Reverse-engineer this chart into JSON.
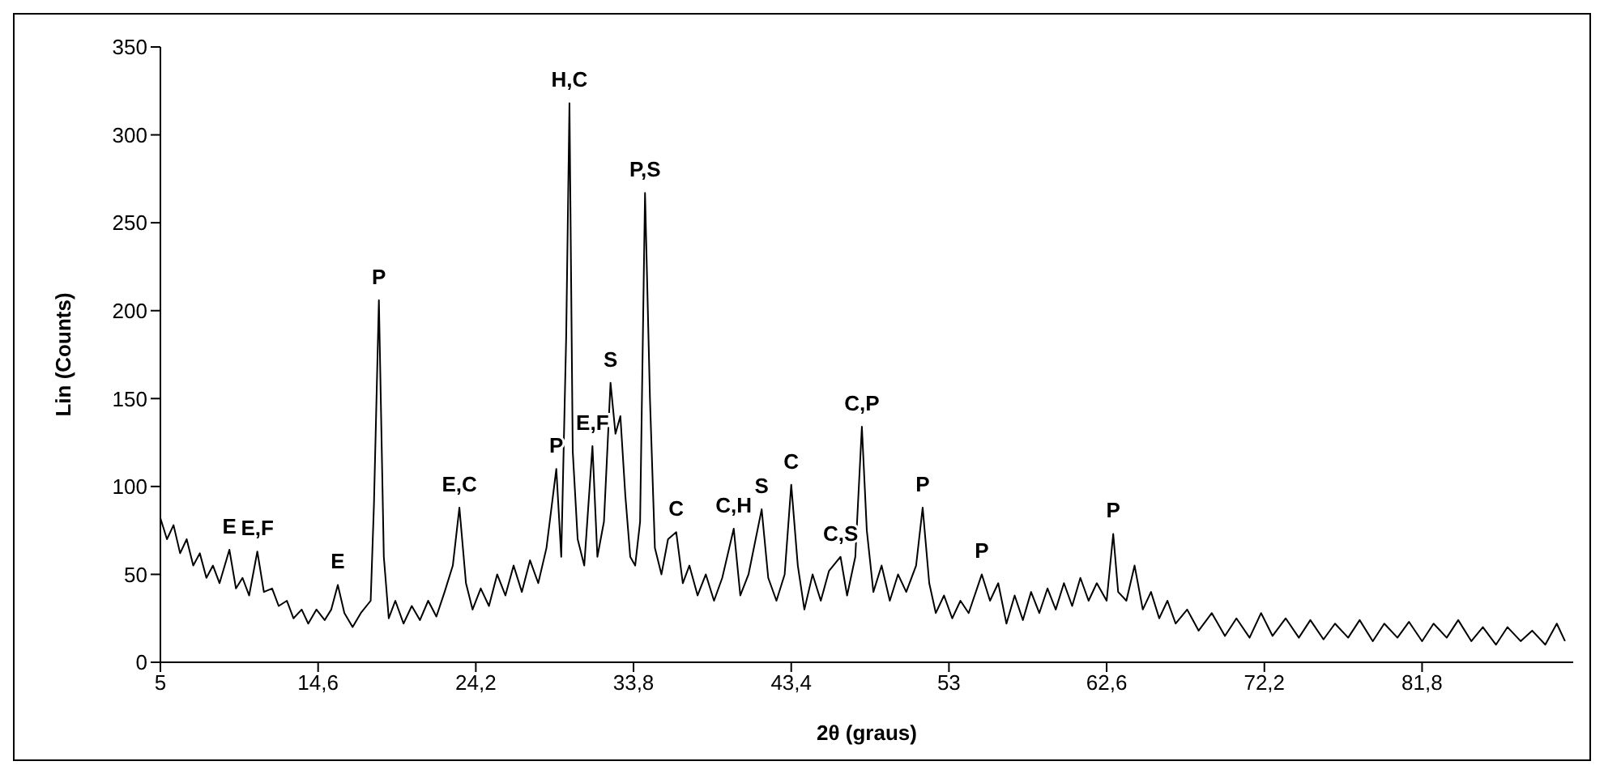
{
  "chart_data": {
    "type": "line",
    "xlabel": "2θ (graus)",
    "ylabel": "Lin (Counts)",
    "xlim": [
      5,
      91
    ],
    "xticks": [
      5,
      {
        "value": 14.6,
        "label": "14,6"
      },
      {
        "value": 24.2,
        "label": "24,2"
      },
      {
        "value": 33.8,
        "label": "33,8"
      },
      {
        "value": 43.4,
        "label": "43,4"
      },
      53,
      {
        "value": 62.6,
        "label": "62,6"
      },
      {
        "value": 72.2,
        "label": "72,2"
      },
      {
        "value": 81.8,
        "label": "81,8"
      }
    ],
    "ylim": [
      0,
      350
    ],
    "yticks": [
      0,
      50,
      100,
      150,
      200,
      250,
      300,
      350
    ],
    "grid": false,
    "marker": "none",
    "line_style": "solid",
    "series": [
      {
        "color": "#000000",
        "x": [
          5,
          5.4,
          5.8,
          6.2,
          6.6,
          7.0,
          7.4,
          7.8,
          8.2,
          8.6,
          9.2,
          9.6,
          10.0,
          10.4,
          10.9,
          11.3,
          11.8,
          12.2,
          12.7,
          13.1,
          13.6,
          14.0,
          14.5,
          15.0,
          15.4,
          15.8,
          16.2,
          16.7,
          17.2,
          17.8,
          18.0,
          18.3,
          18.6,
          18.9,
          19.3,
          19.8,
          20.3,
          20.8,
          21.3,
          21.8,
          22.3,
          22.8,
          23.2,
          23.6,
          24.0,
          24.5,
          25.0,
          25.5,
          26.0,
          26.5,
          27.0,
          27.5,
          28.0,
          28.5,
          29.1,
          29.4,
          29.7,
          29.9,
          30.1,
          30.4,
          30.8,
          31.3,
          31.6,
          32.0,
          32.4,
          32.7,
          33.0,
          33.3,
          33.6,
          33.9,
          34.2,
          34.5,
          34.8,
          35.1,
          35.5,
          35.9,
          36.4,
          36.8,
          37.2,
          37.7,
          38.2,
          38.7,
          39.2,
          39.9,
          40.3,
          40.8,
          41.6,
          42.0,
          42.5,
          43.0,
          43.4,
          43.8,
          44.2,
          44.7,
          45.2,
          45.7,
          46.4,
          46.8,
          47.3,
          47.7,
          48.0,
          48.4,
          48.9,
          49.4,
          49.9,
          50.4,
          51.0,
          51.4,
          51.8,
          52.2,
          52.7,
          53.2,
          53.7,
          54.2,
          55.0,
          55.5,
          56.0,
          56.5,
          57.0,
          57.5,
          58.0,
          58.5,
          59.0,
          59.5,
          60.0,
          60.5,
          61.0,
          61.5,
          62.0,
          62.6,
          63.0,
          63.3,
          63.8,
          64.3,
          64.8,
          65.3,
          65.8,
          66.3,
          66.8,
          67.5,
          68.2,
          69.0,
          69.8,
          70.5,
          71.3,
          72.0,
          72.7,
          73.5,
          74.3,
          75.0,
          75.8,
          76.5,
          77.3,
          78.0,
          78.8,
          79.5,
          80.3,
          81.0,
          81.8,
          82.5,
          83.3,
          84.0,
          84.8,
          85.5,
          86.3,
          87.0,
          87.8,
          88.5,
          89.3,
          90.0,
          90.5
        ],
        "values": [
          82,
          70,
          78,
          62,
          70,
          55,
          62,
          48,
          55,
          45,
          64,
          42,
          48,
          38,
          63,
          40,
          42,
          32,
          35,
          25,
          30,
          22,
          30,
          24,
          30,
          44,
          28,
          20,
          28,
          35,
          90,
          206,
          60,
          25,
          35,
          22,
          32,
          24,
          35,
          26,
          40,
          55,
          88,
          45,
          30,
          42,
          32,
          50,
          38,
          55,
          40,
          58,
          45,
          65,
          110,
          60,
          185,
          318,
          120,
          70,
          55,
          123,
          60,
          80,
          159,
          130,
          140,
          95,
          60,
          55,
          80,
          267,
          150,
          65,
          50,
          70,
          74,
          45,
          55,
          38,
          50,
          35,
          48,
          76,
          38,
          50,
          87,
          48,
          35,
          50,
          101,
          55,
          30,
          50,
          35,
          52,
          60,
          38,
          60,
          134,
          75,
          40,
          55,
          35,
          50,
          40,
          55,
          88,
          45,
          28,
          38,
          25,
          35,
          28,
          50,
          35,
          45,
          22,
          38,
          24,
          40,
          28,
          42,
          30,
          45,
          32,
          48,
          35,
          45,
          35,
          73,
          40,
          35,
          55,
          30,
          40,
          25,
          35,
          22,
          30,
          18,
          28,
          15,
          25,
          14,
          28,
          15,
          25,
          14,
          24,
          13,
          22,
          14,
          24,
          12,
          22,
          14,
          23,
          12,
          22,
          14,
          24,
          12,
          20,
          10,
          20,
          12,
          18,
          10,
          22,
          12
        ]
      }
    ],
    "annotations": [
      {
        "text": "E",
        "x": 9.2,
        "y": 64
      },
      {
        "text": "E,F",
        "x": 10.9,
        "y": 63
      },
      {
        "text": "E",
        "x": 15.8,
        "y": 44
      },
      {
        "text": "P",
        "x": 18.3,
        "y": 206
      },
      {
        "text": "E,C",
        "x": 23.2,
        "y": 88
      },
      {
        "text": "P",
        "x": 29.1,
        "y": 110
      },
      {
        "text": "H,C",
        "x": 29.9,
        "y": 318
      },
      {
        "text": "E,F",
        "x": 31.3,
        "y": 123
      },
      {
        "text": "S",
        "x": 32.4,
        "y": 159
      },
      {
        "text": "P,S",
        "x": 34.5,
        "y": 267
      },
      {
        "text": "C",
        "x": 36.4,
        "y": 74
      },
      {
        "text": "C,H",
        "x": 39.9,
        "y": 76
      },
      {
        "text": "S",
        "x": 41.6,
        "y": 87
      },
      {
        "text": "C",
        "x": 43.4,
        "y": 101
      },
      {
        "text": "C,S",
        "x": 46.4,
        "y": 60
      },
      {
        "text": "C,P",
        "x": 47.7,
        "y": 134
      },
      {
        "text": "P",
        "x": 51.4,
        "y": 88
      },
      {
        "text": "P",
        "x": 55.0,
        "y": 50
      },
      {
        "text": "P",
        "x": 63.0,
        "y": 73
      }
    ]
  }
}
